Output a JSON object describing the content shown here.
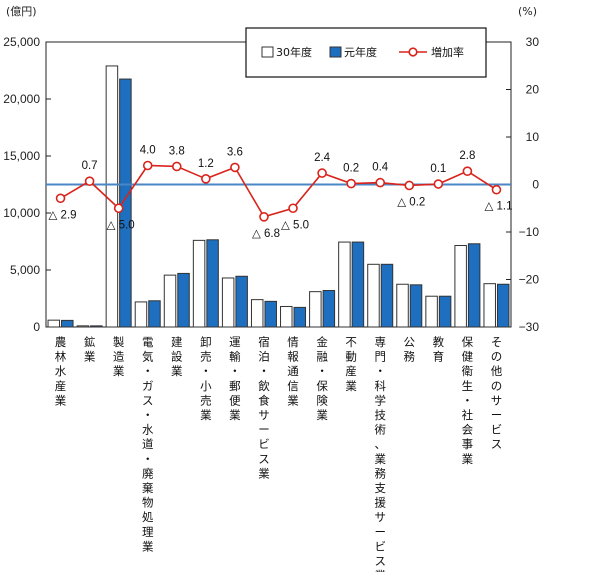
{
  "chart_data": {
    "type": "bar",
    "left_axis_unit": "(億円)",
    "right_axis_unit": "(%)",
    "left_ticks": [
      "0",
      "5,000",
      "10,000",
      "15,000",
      "20,000",
      "25,000"
    ],
    "right_ticks": [
      "−30",
      "−20",
      "−10",
      "0",
      "10",
      "20",
      "30"
    ],
    "ylim_left": [
      0,
      25000
    ],
    "ylim_right": [
      -30,
      30
    ],
    "categories": [
      "農林水産業",
      "鉱業",
      "製造業",
      "電気・ガス・水道・廃棄物処理業",
      "建設業",
      "卸売・小売業",
      "運輸・郵便業",
      "宿泊・飲食サービス業",
      "情報通信業",
      "金融・保険業",
      "不動産業",
      "専門・科学技術、業務支援サービス業",
      "公務",
      "教育",
      "保健衛生・社会事業",
      "その他のサービス"
    ],
    "series": [
      {
        "name": "30年度",
        "kind": "bar",
        "color": "#ffffff",
        "values": [
          600,
          100,
          22900,
          2200,
          4550,
          7600,
          4300,
          2400,
          1800,
          3100,
          7450,
          5500,
          3750,
          2700,
          7150,
          3800
        ]
      },
      {
        "name": "元年度",
        "kind": "bar",
        "color": "#1f6fc1",
        "values": [
          580,
          100,
          21750,
          2300,
          4700,
          7650,
          4450,
          2250,
          1720,
          3200,
          7450,
          5500,
          3700,
          2700,
          7300,
          3750
        ]
      },
      {
        "name": "増加率",
        "kind": "line",
        "axis": "right",
        "color": "#d9241c",
        "values": [
          -2.9,
          0.7,
          -5.0,
          4.0,
          3.8,
          1.2,
          3.6,
          -6.8,
          -5.0,
          2.4,
          0.2,
          0.4,
          -0.2,
          0.1,
          2.8,
          -1.1
        ],
        "labels": [
          "△ 2.9",
          "0.7",
          "△ 5.0",
          "4.0",
          "3.8",
          "1.2",
          "3.6",
          "△ 6.8",
          "△ 5.0",
          "2.4",
          "0.2",
          "0.4",
          "△ 0.2",
          "0.1",
          "2.8",
          "△ 1.1"
        ]
      }
    ],
    "legend_placement": "top-right",
    "grid": false
  }
}
